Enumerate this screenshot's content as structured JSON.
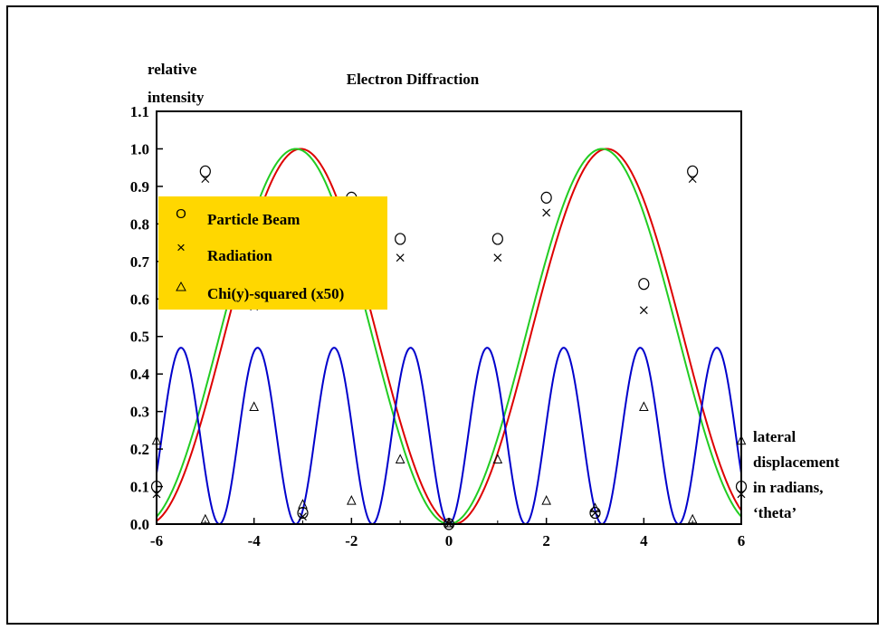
{
  "chart_data": {
    "type": "line",
    "title": "Electron Diffraction",
    "ylabel": [
      "relative",
      "intensity"
    ],
    "xlabel": [
      "lateral",
      "displacement",
      "in radians,",
      "‘theta’"
    ],
    "xlim": [
      -6,
      6
    ],
    "ylim": [
      0,
      1.1
    ],
    "xticks": [
      -6,
      -4,
      -2,
      0,
      2,
      4,
      6
    ],
    "xtick_labels": [
      "-6",
      "-4",
      "-2",
      "0",
      "2",
      "4",
      "6"
    ],
    "yticks": [
      0,
      0.1,
      0.2,
      0.3,
      0.4,
      0.5,
      0.6,
      0.7,
      0.8,
      0.9,
      1.0,
      1.1
    ],
    "ytick_labels": [
      "0.0",
      "0.1",
      "0.2",
      "0.3",
      "0.4",
      "0.5",
      "0.6",
      "0.7",
      "0.8",
      "0.9",
      "1.0",
      "1.1"
    ],
    "grid": false,
    "legend_position": "upper-left",
    "legend_background": "#FFD700",
    "legend": [
      {
        "name": "Particle Beam",
        "marker": "circle"
      },
      {
        "name": "Radiation",
        "marker": "cross"
      },
      {
        "name": "Chi(y)-squared (x50)",
        "marker": "triangle"
      }
    ],
    "curves": [
      {
        "color": "#DD0000",
        "formula": "sin^2(x/2 - 0.05)"
      },
      {
        "color": "#22CC22",
        "formula": "sin^2(x/2)"
      },
      {
        "color": "#0000CC",
        "formula": "0.47*sin^2(x)*... (chi-squared curve)"
      }
    ],
    "series": [
      {
        "name": "Particle Beam",
        "marker": "circle",
        "x": [
          -6,
          -5,
          -4,
          -3,
          -2,
          -1,
          0,
          1,
          2,
          3,
          4,
          5,
          6
        ],
        "y": [
          0.1,
          0.94,
          0.64,
          0.03,
          0.87,
          0.76,
          0.0,
          0.76,
          0.87,
          0.03,
          0.64,
          0.94,
          0.1
        ]
      },
      {
        "name": "Radiation",
        "marker": "cross",
        "x": [
          -6,
          -5,
          -4,
          -3,
          -2,
          -1,
          0,
          1,
          2,
          3,
          4,
          5,
          6
        ],
        "y": [
          0.08,
          0.92,
          0.58,
          0.02,
          0.83,
          0.71,
          0.0,
          0.71,
          0.83,
          0.03,
          0.57,
          0.92,
          0.08
        ]
      },
      {
        "name": "Chi(y)-squared (x50)",
        "marker": "triangle",
        "x": [
          -6,
          -5,
          -4,
          -3,
          -2,
          -1,
          0,
          1,
          2,
          3,
          4,
          5,
          6
        ],
        "y": [
          0.22,
          0.01,
          0.31,
          0.05,
          0.06,
          0.17,
          0.0,
          0.17,
          0.06,
          0.04,
          0.31,
          0.01,
          0.22
        ]
      }
    ]
  }
}
